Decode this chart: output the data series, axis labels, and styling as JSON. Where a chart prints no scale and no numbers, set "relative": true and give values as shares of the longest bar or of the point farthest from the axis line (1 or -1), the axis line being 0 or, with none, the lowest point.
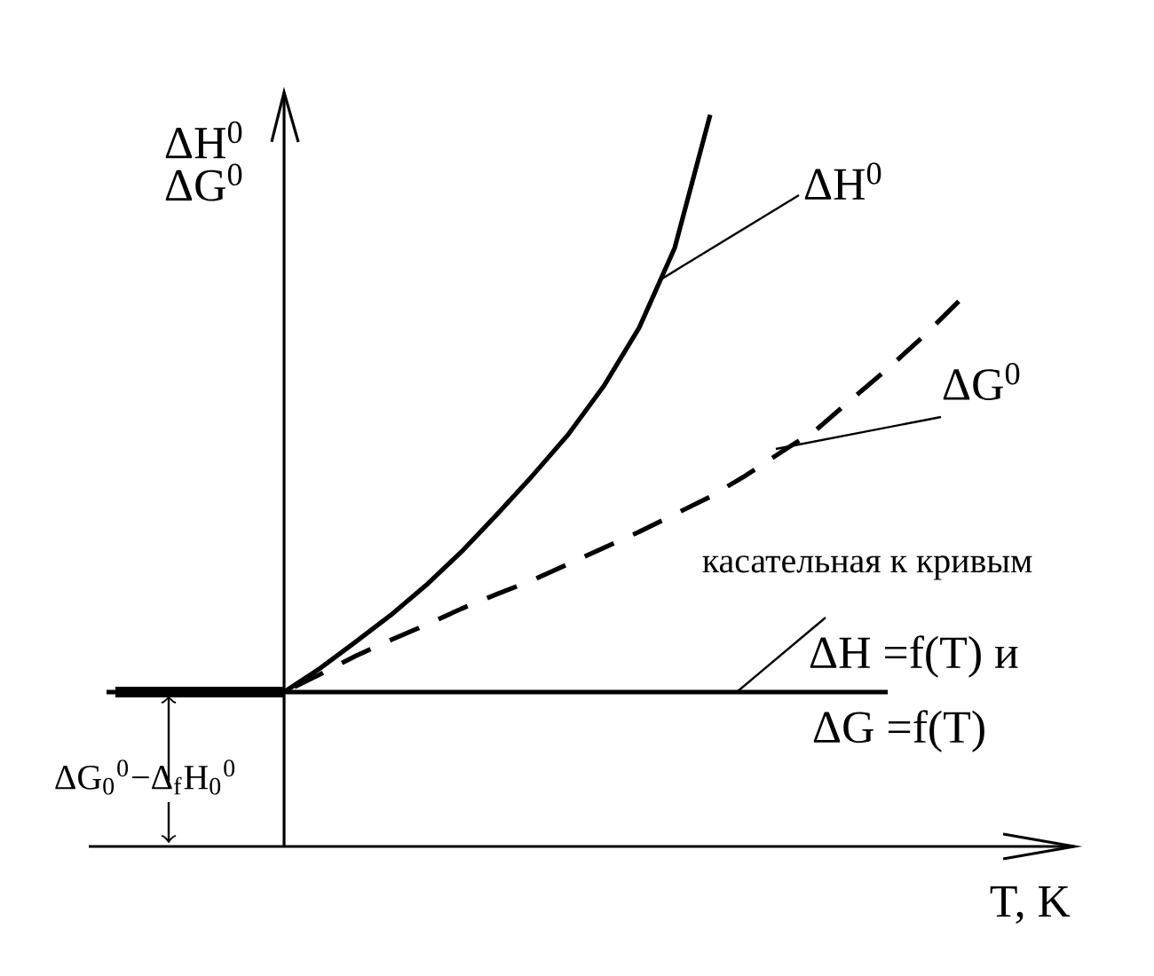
{
  "chart_data": {
    "type": "line",
    "relative": true,
    "xlabel": "T, K",
    "ylabel": "ΔH$^{0}$ ΔG$^{0}$",
    "categories": [
      null,
      null,
      null,
      null,
      null,
      null,
      null,
      null,
      null,
      null,
      null,
      null,
      null,
      null,
      null,
      null,
      null,
      null,
      null,
      null,
      null,
      null,
      null,
      null,
      null,
      null,
      null,
      null
    ],
    "series": [
      {
        "name": "ΔH$^{0}$",
        "color": "#000000",
        "line_style": "solid",
        "values": [
          null,
          null,
          null,
          null,
          null,
          0.211,
          0.243,
          0.279,
          0.316,
          0.357,
          0.403,
          0.454,
          0.507,
          0.563,
          0.629,
          0.709,
          0.818,
          1.0,
          null,
          null,
          null,
          null,
          null,
          null,
          null,
          null,
          null,
          null
        ]
      },
      {
        "name": "ΔG$^{0}$",
        "color": "#000000",
        "line_style": "dashed",
        "values": [
          null,
          null,
          null,
          null,
          null,
          0.211,
          0.235,
          0.26,
          0.282,
          0.303,
          0.325,
          0.345,
          0.364,
          0.386,
          0.408,
          0.43,
          0.454,
          0.478,
          0.507,
          0.539,
          0.57,
          0.612,
          0.653,
          0.697,
          0.745,
          null,
          null,
          null
        ]
      },
      {
        "color": "#000000",
        "line_style": "solid",
        "values": [
          0.211,
          0.211,
          0.211,
          0.211,
          0.211,
          0.211,
          0.211,
          0.211,
          0.211,
          0.211,
          0.211,
          0.211,
          0.211,
          0.211,
          0.211,
          0.211,
          0.211,
          0.211,
          0.211,
          0.211,
          0.211,
          0.211,
          0.211,
          null,
          null,
          null,
          null,
          null
        ]
      }
    ],
    "annotations": [
      "касательная к кривым",
      "ΔH =f(T)  и",
      "ΔG =f(T)",
      "ΔG$_{0}$$^{0}$−Δ$_{f}$H$_{0}$$^{0}$"
    ]
  }
}
